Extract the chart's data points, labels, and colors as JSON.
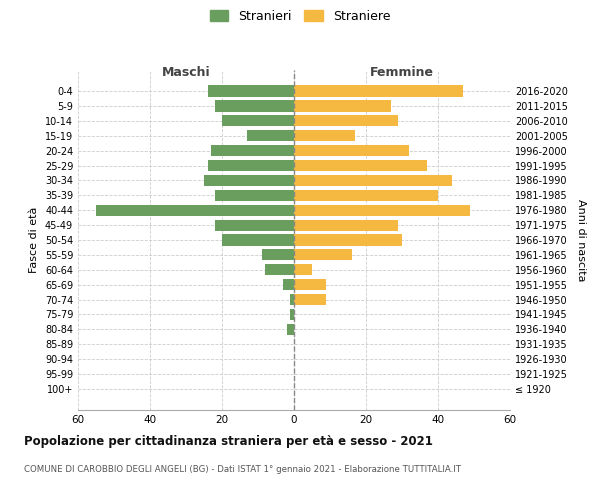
{
  "age_groups": [
    "100+",
    "95-99",
    "90-94",
    "85-89",
    "80-84",
    "75-79",
    "70-74",
    "65-69",
    "60-64",
    "55-59",
    "50-54",
    "45-49",
    "40-44",
    "35-39",
    "30-34",
    "25-29",
    "20-24",
    "15-19",
    "10-14",
    "5-9",
    "0-4"
  ],
  "birth_years": [
    "≤ 1920",
    "1921-1925",
    "1926-1930",
    "1931-1935",
    "1936-1940",
    "1941-1945",
    "1946-1950",
    "1951-1955",
    "1956-1960",
    "1961-1965",
    "1966-1970",
    "1971-1975",
    "1976-1980",
    "1981-1985",
    "1986-1990",
    "1991-1995",
    "1996-2000",
    "2001-2005",
    "2006-2010",
    "2011-2015",
    "2016-2020"
  ],
  "maschi": [
    0,
    0,
    0,
    0,
    2,
    1,
    1,
    3,
    8,
    9,
    20,
    22,
    55,
    22,
    25,
    24,
    23,
    13,
    20,
    22,
    24
  ],
  "femmine": [
    0,
    0,
    0,
    0,
    0,
    0,
    9,
    9,
    5,
    16,
    30,
    29,
    49,
    40,
    44,
    37,
    32,
    17,
    29,
    27,
    47
  ],
  "male_color": "#6a9e5e",
  "female_color": "#f5b942",
  "title": "Popolazione per cittadinanza straniera per età e sesso - 2021",
  "subtitle": "COMUNE DI CAROBBIO DEGLI ANGELI (BG) - Dati ISTAT 1° gennaio 2021 - Elaborazione TUTTITALIA.IT",
  "ylabel_left": "Fasce di età",
  "ylabel_right": "Anni di nascita",
  "xlabel_maschi": "Maschi",
  "xlabel_femmine": "Femmine",
  "xlim": 60,
  "legend_labels": [
    "Stranieri",
    "Straniere"
  ],
  "background_color": "#ffffff",
  "grid_color": "#cccccc"
}
